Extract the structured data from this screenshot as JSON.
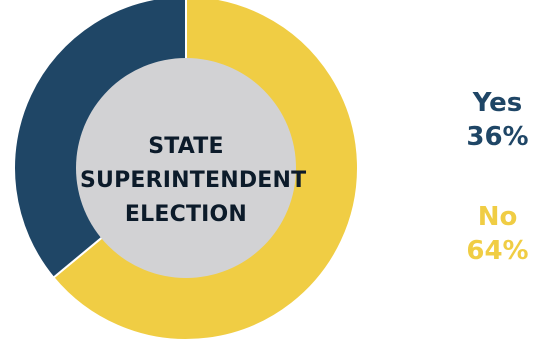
{
  "chart_data": {
    "type": "pie",
    "title": [
      "STATE",
      "SUPERINTENDENT",
      "ELECTION"
    ],
    "categories": [
      "Yes",
      "No"
    ],
    "values": [
      36,
      64
    ],
    "value_labels": [
      "36%",
      "64%"
    ],
    "colors": [
      "#1f4666",
      "#f0cd44"
    ],
    "hole_color": "#d2d2d4"
  }
}
